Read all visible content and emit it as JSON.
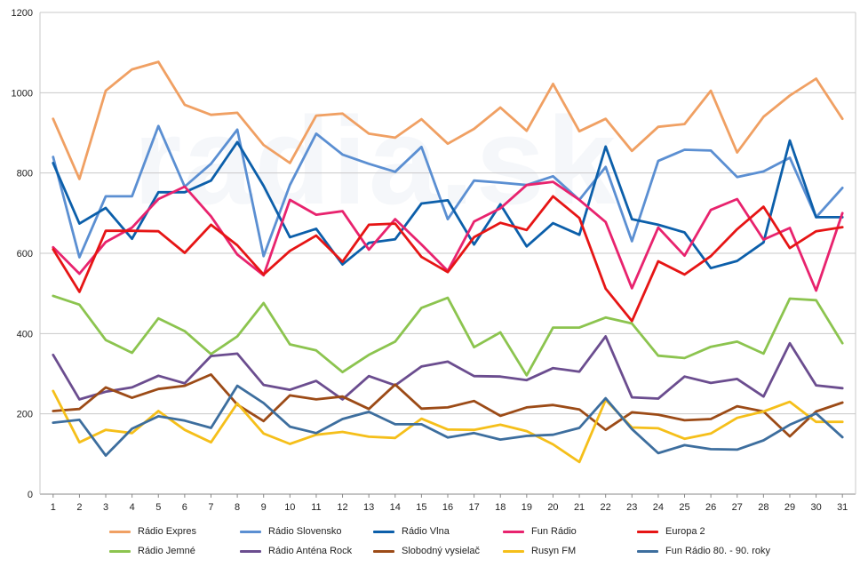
{
  "chart_data": {
    "type": "line",
    "x": [
      1,
      2,
      3,
      4,
      5,
      6,
      7,
      8,
      9,
      10,
      11,
      12,
      13,
      14,
      15,
      16,
      17,
      18,
      19,
      20,
      21,
      22,
      23,
      24,
      25,
      26,
      27,
      28,
      29,
      30,
      31
    ],
    "ylim": [
      0,
      1200
    ],
    "yticks": [
      0,
      200,
      400,
      600,
      800,
      1000,
      1200
    ],
    "grid": "horizontal",
    "legend_position": "bottom",
    "watermark": "radia.sk",
    "series": [
      {
        "name": "Rádio Expres",
        "color": "#f0a063",
        "values": [
          935,
          785,
          1005,
          1058,
          1077,
          970,
          945,
          950,
          870,
          825,
          943,
          948,
          898,
          888,
          934,
          873,
          910,
          963,
          905,
          1022,
          904,
          935,
          855,
          915,
          922,
          1005,
          851,
          940,
          993,
          1035,
          935
        ]
      },
      {
        "name": "Rádio Slovensko",
        "color": "#5b8fd2",
        "values": [
          840,
          590,
          742,
          742,
          917,
          766,
          823,
          908,
          593,
          770,
          898,
          846,
          823,
          803,
          865,
          685,
          781,
          776,
          770,
          792,
          733,
          815,
          630,
          830,
          858,
          856,
          790,
          804,
          838,
          690,
          763
        ]
      },
      {
        "name": "Rádio Vlna",
        "color": "#0c5faa",
        "values": [
          825,
          674,
          713,
          636,
          752,
          752,
          781,
          877,
          768,
          640,
          661,
          572,
          626,
          635,
          724,
          732,
          622,
          722,
          617,
          675,
          646,
          866,
          685,
          671,
          652,
          563,
          581,
          627,
          881,
          690,
          690
        ]
      },
      {
        "name": "Fun Rádio",
        "color": "#e8236e",
        "values": [
          615,
          549,
          628,
          664,
          735,
          766,
          692,
          597,
          545,
          733,
          696,
          705,
          609,
          685,
          622,
          556,
          679,
          712,
          770,
          778,
          733,
          678,
          513,
          664,
          594,
          708,
          735,
          634,
          663,
          507,
          700
        ]
      },
      {
        "name": "Europa 2",
        "color": "#e61515",
        "values": [
          610,
          504,
          656,
          656,
          655,
          601,
          671,
          620,
          547,
          606,
          644,
          579,
          671,
          674,
          591,
          553,
          640,
          676,
          658,
          742,
          688,
          512,
          431,
          580,
          547,
          593,
          660,
          716,
          613,
          655,
          665
        ]
      },
      {
        "name": "Rádio Jemné",
        "color": "#8cc44f",
        "values": [
          494,
          472,
          384,
          352,
          438,
          406,
          349,
          393,
          476,
          373,
          358,
          304,
          347,
          380,
          464,
          489,
          366,
          403,
          296,
          415,
          415,
          440,
          425,
          345,
          339,
          367,
          380,
          350,
          487,
          483,
          376
        ]
      },
      {
        "name": "Rádio Anténa Rock",
        "color": "#6b4d8f",
        "values": [
          347,
          236,
          255,
          266,
          295,
          276,
          344,
          350,
          272,
          260,
          282,
          236,
          294,
          271,
          318,
          330,
          294,
          293,
          284,
          314,
          305,
          393,
          241,
          238,
          293,
          277,
          287,
          243,
          376,
          271,
          264
        ]
      },
      {
        "name": "Slobodný vysielač",
        "color": "#9c4b17",
        "values": [
          207,
          212,
          266,
          240,
          262,
          270,
          298,
          223,
          182,
          246,
          236,
          243,
          212,
          273,
          213,
          216,
          232,
          195,
          216,
          222,
          211,
          160,
          204,
          198,
          184,
          187,
          219,
          206,
          144,
          206,
          228
        ]
      },
      {
        "name": "Rusyn FM",
        "color": "#f5bf1a",
        "values": [
          257,
          129,
          160,
          152,
          207,
          160,
          129,
          226,
          151,
          125,
          148,
          155,
          143,
          140,
          188,
          161,
          160,
          173,
          157,
          124,
          80,
          235,
          166,
          164,
          138,
          151,
          190,
          206,
          230,
          180,
          180
        ]
      },
      {
        "name": "Fun Rádio 80. - 90. roky",
        "color": "#3d6e9e",
        "values": [
          178,
          185,
          96,
          163,
          194,
          183,
          165,
          270,
          227,
          168,
          152,
          187,
          205,
          174,
          174,
          141,
          152,
          136,
          145,
          148,
          165,
          239,
          162,
          102,
          122,
          112,
          111,
          134,
          173,
          201,
          142
        ]
      }
    ]
  }
}
